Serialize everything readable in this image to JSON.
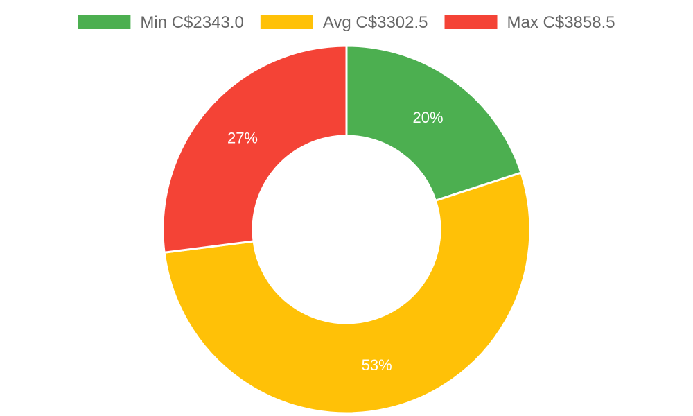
{
  "chart_data": {
    "type": "pie",
    "variant": "doughnut",
    "legend_position": "top",
    "categories": [
      "Min C$2343.0",
      "Avg C$3302.5",
      "Max C$3858.5"
    ],
    "percent_labels": [
      "20%",
      "53%",
      "27%"
    ],
    "values": [
      20,
      53,
      27
    ],
    "colors": [
      "#4caf50",
      "#ffc107",
      "#f44336"
    ]
  }
}
